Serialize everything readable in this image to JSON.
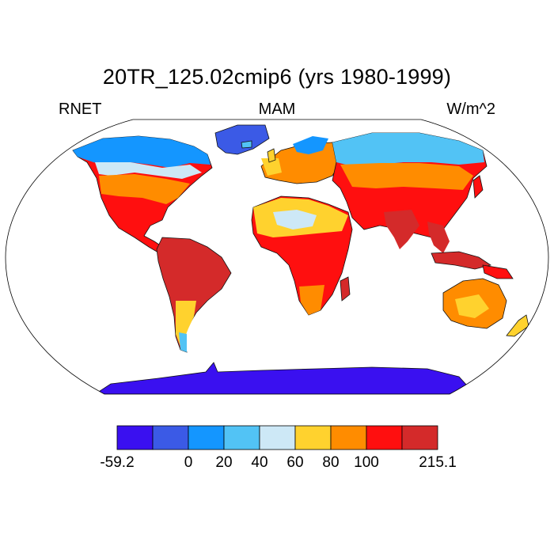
{
  "title": "20TR_125.02cmip6 (yrs 1980-1999)",
  "left_label": "RNET",
  "center_label": "MAM",
  "right_label": "W/m^2",
  "colorbar": {
    "colors": [
      "#3a10f0",
      "#3b5ae6",
      "#1496ff",
      "#52c3f5",
      "#cde8f6",
      "#ffd22e",
      "#ff8c00",
      "#ff0f0f",
      "#d42a2a"
    ],
    "labels": [
      "-59.2",
      "0",
      "20",
      "40",
      "60",
      "80",
      "100",
      "215.1"
    ],
    "label_boundaries": [
      0,
      2,
      3,
      4,
      5,
      6,
      7,
      9
    ]
  }
}
